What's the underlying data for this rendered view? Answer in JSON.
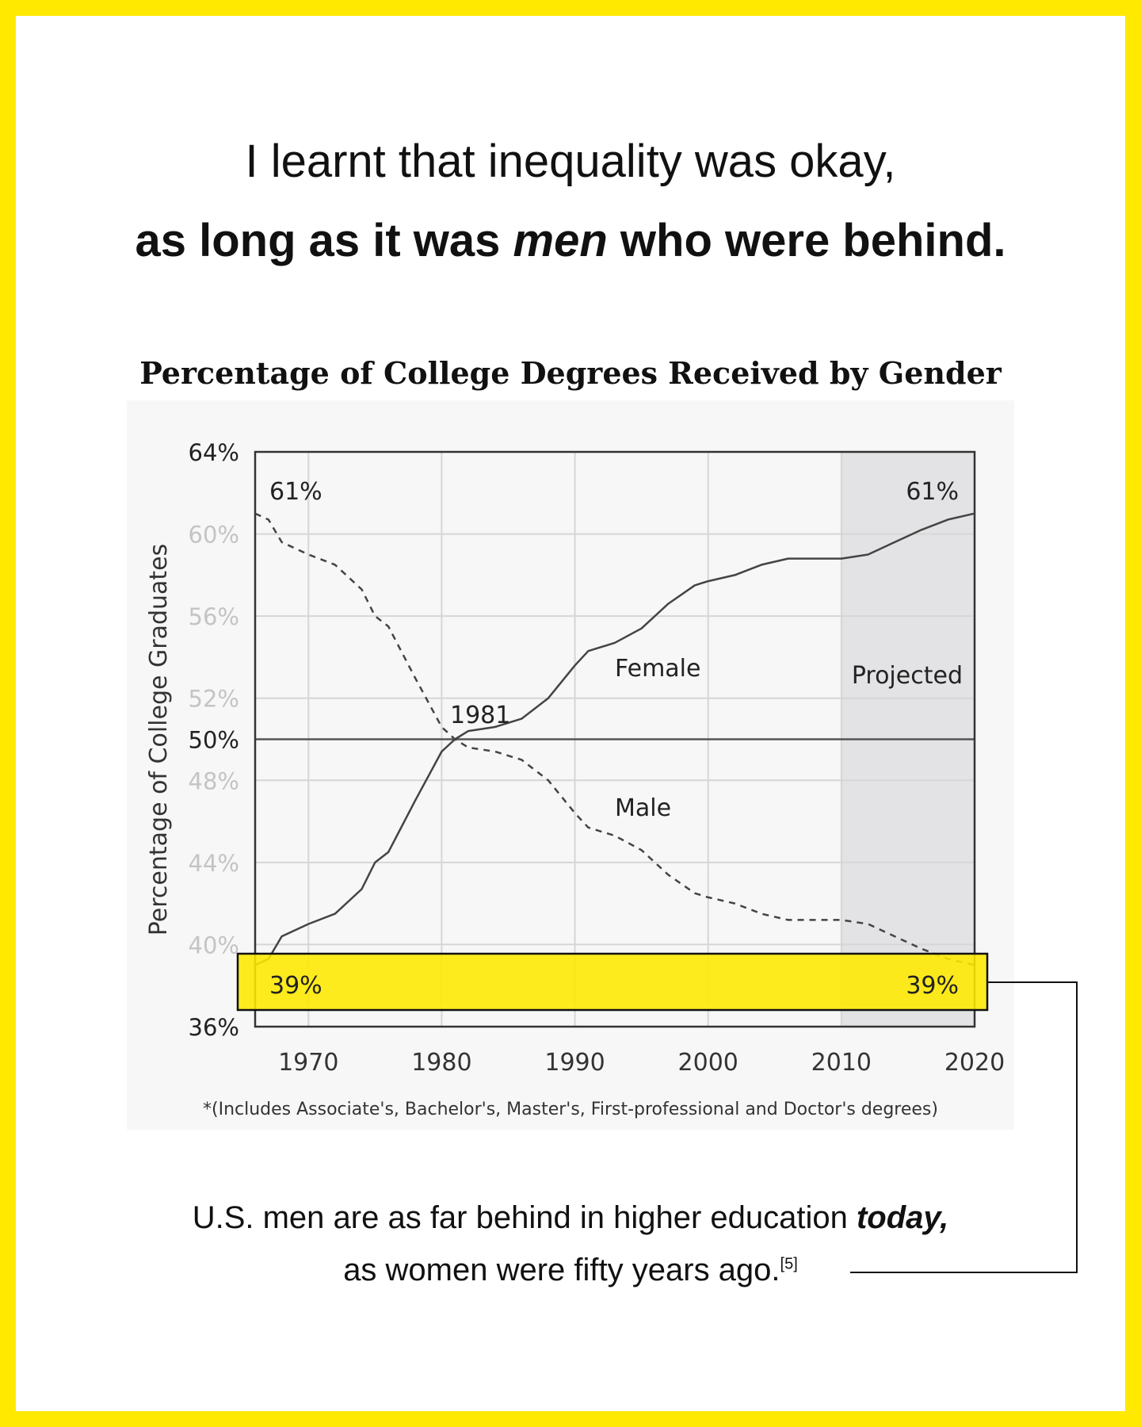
{
  "heading": {
    "line1": "I learnt that inequality was okay,",
    "line2_pre": "as long as it was ",
    "line2_em": "men",
    "line2_post": " who were behind."
  },
  "chart_data": {
    "type": "line",
    "title": "Percentage of College Degrees Received by Gender",
    "ylabel": "Percentage of College Graduates",
    "xlabel": "",
    "xlim": [
      1966,
      2020
    ],
    "ylim": [
      36,
      64
    ],
    "xticks": [
      1970,
      1980,
      1990,
      2000,
      2010,
      2020
    ],
    "yticks": [
      {
        "v": 64,
        "label": "64%",
        "dark": true
      },
      {
        "v": 60,
        "label": "60%"
      },
      {
        "v": 56,
        "label": "56%"
      },
      {
        "v": 52,
        "label": "52%"
      },
      {
        "v": 50,
        "label": "50%",
        "dark": true
      },
      {
        "v": 48,
        "label": "48%"
      },
      {
        "v": 44,
        "label": "44%"
      },
      {
        "v": 40,
        "label": "40%"
      },
      {
        "v": 36,
        "label": "36%",
        "dark": true
      }
    ],
    "projected_from": 2010,
    "projected_label": "Projected",
    "series": [
      {
        "name": "Female",
        "style": "solid",
        "x": [
          1966,
          1967,
          1968,
          1970,
          1972,
          1974,
          1975,
          1976,
          1978,
          1980,
          1981,
          1982,
          1984,
          1986,
          1988,
          1990,
          1991,
          1993,
          1995,
          1997,
          1999,
          2000,
          2002,
          2004,
          2006,
          2008,
          2010,
          2012,
          2014,
          2016,
          2018,
          2020
        ],
        "y": [
          39,
          39.3,
          40.4,
          41,
          41.5,
          42.7,
          44,
          44.5,
          47,
          49.4,
          50,
          50.4,
          50.6,
          51,
          52,
          53.6,
          54.3,
          54.7,
          55.4,
          56.6,
          57.5,
          57.7,
          58,
          58.5,
          58.8,
          58.8,
          58.8,
          59,
          59.6,
          60.2,
          60.7,
          61
        ]
      },
      {
        "name": "Male",
        "style": "dashed",
        "x": [
          1966,
          1967,
          1968,
          1970,
          1972,
          1974,
          1975,
          1976,
          1978,
          1980,
          1981,
          1982,
          1984,
          1986,
          1988,
          1990,
          1991,
          1993,
          1995,
          1997,
          1999,
          2000,
          2002,
          2004,
          2006,
          2008,
          2010,
          2012,
          2014,
          2016,
          2018,
          2020
        ],
        "y": [
          61,
          60.7,
          59.6,
          59,
          58.5,
          57.3,
          56,
          55.5,
          53,
          50.6,
          50,
          49.6,
          49.4,
          49,
          48,
          46.4,
          45.7,
          45.3,
          44.6,
          43.4,
          42.5,
          42.3,
          42,
          41.5,
          41.2,
          41.2,
          41.2,
          41,
          40.4,
          39.8,
          39.3,
          39
        ]
      }
    ],
    "annotations": {
      "start_high": "61%",
      "end_high": "61%",
      "start_low": "39%",
      "end_low": "39%",
      "crossover": "1981",
      "female_label": "Female",
      "male_label": "Male"
    },
    "footnote": "*(Includes Associate's, Bachelor's, Master's, First-professional and Doctor's degrees)"
  },
  "caption": {
    "line1_pre": "U.S. men are as far behind in higher education ",
    "line1_em": "today,",
    "line2": "as women were fifty years ago.",
    "ref": "[5]"
  },
  "colors": {
    "accent": "#FFE900",
    "line": "#444444",
    "grid": "#d6d6d6",
    "projected": "#e3e3e5"
  }
}
